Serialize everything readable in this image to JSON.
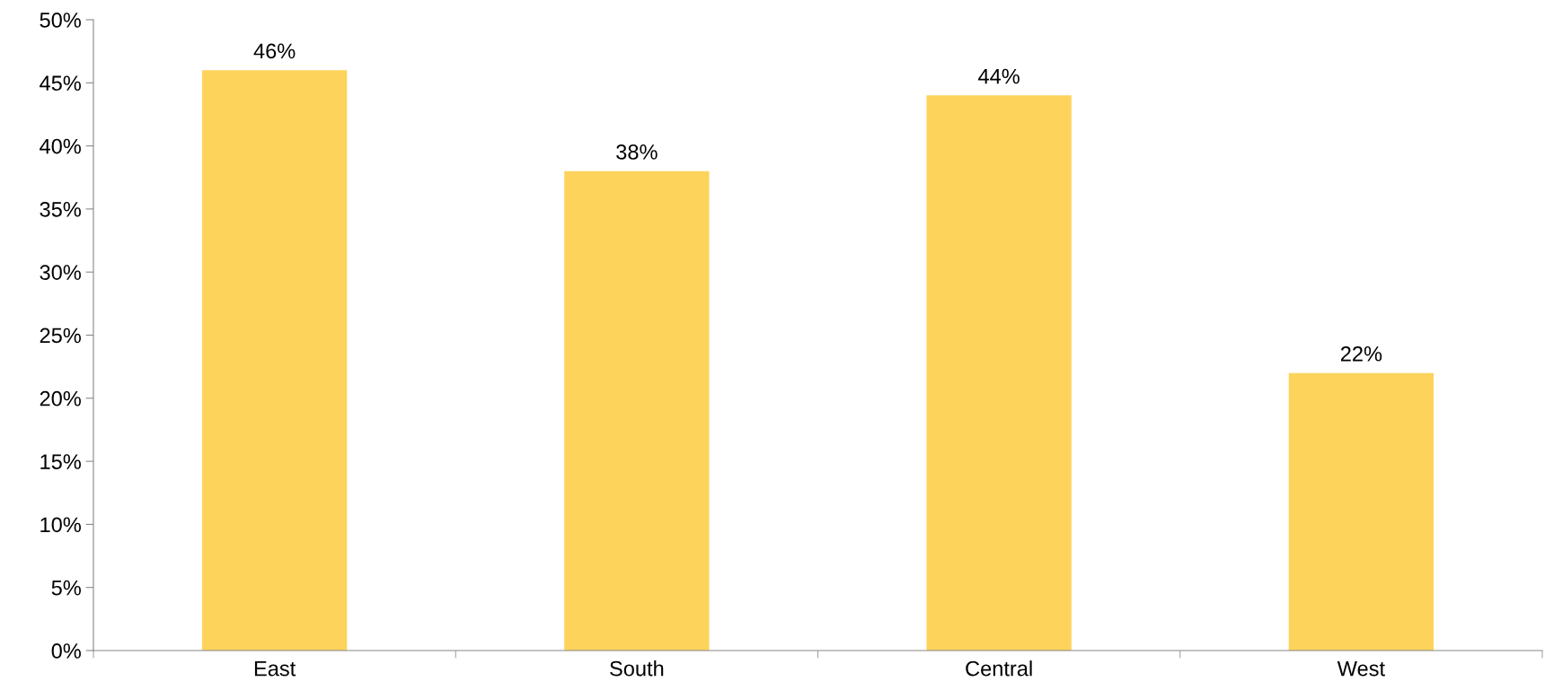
{
  "chart_data": {
    "type": "bar",
    "categories": [
      "East",
      "South",
      "Central",
      "West"
    ],
    "values": [
      46,
      38,
      44,
      22
    ],
    "value_labels": [
      "46%",
      "38%",
      "44%",
      "22%"
    ],
    "color": "#fdd35c",
    "ylim": [
      0,
      50
    ],
    "yticks": [
      {
        "value": 0,
        "label": "0%"
      },
      {
        "value": 5,
        "label": "5%"
      },
      {
        "value": 10,
        "label": "10%"
      },
      {
        "value": 15,
        "label": "15%"
      },
      {
        "value": 20,
        "label": "20%"
      },
      {
        "value": 25,
        "label": "25%"
      },
      {
        "value": 30,
        "label": "30%"
      },
      {
        "value": 35,
        "label": "35%"
      },
      {
        "value": 40,
        "label": "40%"
      },
      {
        "value": 45,
        "label": "45%"
      },
      {
        "value": 50,
        "label": "50%"
      }
    ],
    "grid": false,
    "legend": false
  }
}
